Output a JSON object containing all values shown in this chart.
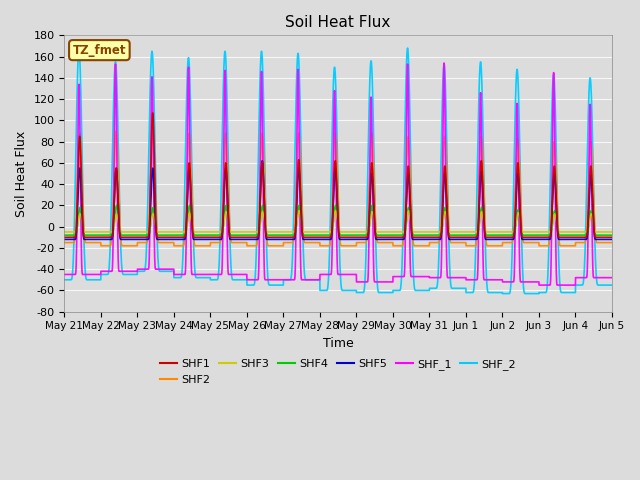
{
  "title": "Soil Heat Flux",
  "xlabel": "Time",
  "ylabel": "Soil Heat Flux",
  "ylim": [
    -80,
    180
  ],
  "yticks": [
    -80,
    -60,
    -40,
    -20,
    0,
    20,
    40,
    60,
    80,
    100,
    120,
    140,
    160,
    180
  ],
  "xtick_labels": [
    "May 21",
    "May 22",
    "May 23",
    "May 24",
    "May 25",
    "May 26",
    "May 27",
    "May 28",
    "May 29",
    "May 30",
    "May 31",
    "Jun 1",
    "Jun 2",
    "Jun 3",
    "Jun 4",
    "Jun 5"
  ],
  "bg_color": "#dcdcdc",
  "plot_bg_color": "#dcdcdc",
  "series_colors": {
    "SHF1": "#cc0000",
    "SHF2": "#ff8800",
    "SHF3": "#cccc00",
    "SHF4": "#00cc00",
    "SHF5": "#0000cc",
    "SHF_1": "#ff00ff",
    "SHF_2": "#00ccff"
  },
  "annotation_text": "TZ_fmet",
  "annotation_color": "#884400",
  "annotation_bg": "#ffffaa",
  "n_days": 15,
  "peaks_SHF1": [
    85,
    55,
    107,
    60,
    60,
    61,
    63,
    62,
    60,
    57,
    57,
    62,
    60,
    57,
    57
  ],
  "peaks_SHF2": [
    88,
    90,
    88,
    88,
    88,
    88,
    88,
    88,
    88,
    85,
    85,
    85,
    82,
    80,
    80
  ],
  "peaks_SHF3": [
    12,
    12,
    12,
    13,
    14,
    14,
    15,
    15,
    14,
    15,
    14,
    14,
    13,
    12,
    12
  ],
  "peaks_SHF4": [
    18,
    20,
    18,
    20,
    20,
    20,
    20,
    20,
    20,
    18,
    18,
    18,
    16,
    15,
    15
  ],
  "peaks_SHF5": [
    55,
    55,
    55,
    55,
    55,
    62,
    55,
    55,
    50,
    50,
    50,
    52,
    50,
    50,
    48
  ],
  "peaks_SHF_1": [
    134,
    153,
    141,
    150,
    147,
    146,
    148,
    128,
    122,
    153,
    154,
    126,
    116,
    145,
    115
  ],
  "peaks_SHF_2": [
    167,
    155,
    165,
    159,
    165,
    165,
    163,
    150,
    156,
    168,
    153,
    155,
    148,
    143,
    140
  ],
  "base_SHF1": [
    -10,
    -10,
    -10,
    -10,
    -10,
    -10,
    -10,
    -10,
    -10,
    -10,
    -10,
    -10,
    -10,
    -10,
    -10
  ],
  "base_SHF2": [
    -15,
    -18,
    -15,
    -18,
    -15,
    -18,
    -15,
    -18,
    -15,
    -18,
    -15,
    -18,
    -15,
    -18,
    -15
  ],
  "base_SHF3": [
    -5,
    -5,
    -5,
    -5,
    -5,
    -5,
    -5,
    -5,
    -5,
    -5,
    -5,
    -5,
    -5,
    -5,
    -5
  ],
  "base_SHF4": [
    -8,
    -8,
    -8,
    -8,
    -8,
    -8,
    -8,
    -8,
    -8,
    -8,
    -8,
    -8,
    -8,
    -8,
    -8
  ],
  "base_SHF5": [
    -12,
    -12,
    -12,
    -12,
    -12,
    -12,
    -12,
    -12,
    -12,
    -12,
    -12,
    -12,
    -12,
    -12,
    -12
  ],
  "base_SHF_1": [
    -45,
    -42,
    -40,
    -45,
    -45,
    -50,
    -50,
    -45,
    -52,
    -47,
    -48,
    -50,
    -52,
    -55,
    -48
  ],
  "base_SHF_2": [
    -50,
    -45,
    -42,
    -48,
    -50,
    -55,
    -50,
    -60,
    -62,
    -60,
    -58,
    -62,
    -63,
    -62,
    -55
  ]
}
